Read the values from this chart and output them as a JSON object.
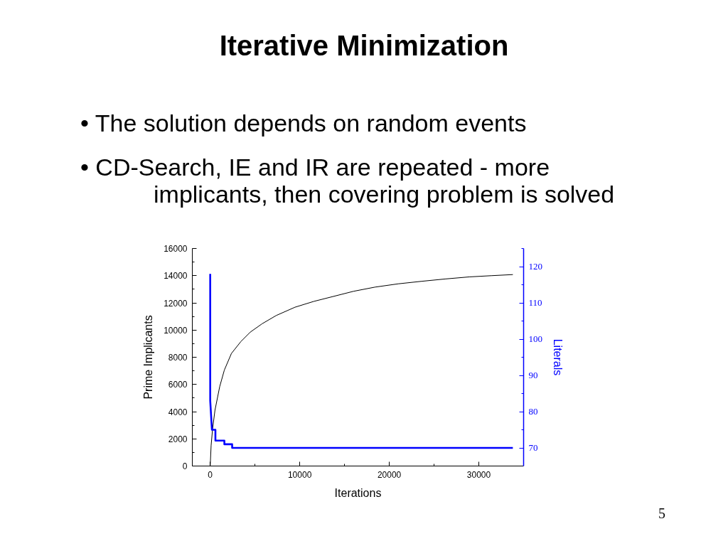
{
  "chart_data": {
    "type": "line",
    "title": "Iterative Minimization",
    "xlabel": "Iterations",
    "ylabel": "Prime Implicants",
    "y2label": "Literals",
    "annotations": [
      "• The solution depends on random events",
      "• CD-Search, IE and IR are repeated - more implicants, then covering problem is solved",
      "5"
    ],
    "xlim": [
      -2000,
      35000
    ],
    "xticks": [
      0,
      {
        "value": 5000,
        "label": null
      },
      10000,
      {
        "value": 15000,
        "label": null
      },
      20000,
      {
        "value": 25000,
        "label": null
      },
      30000
    ],
    "ylim": [
      0,
      16000
    ],
    "yticks": [
      0,
      {
        "value": 1000,
        "label": null
      },
      2000,
      {
        "value": 3000,
        "label": null
      },
      4000,
      {
        "value": 5000,
        "label": null
      },
      6000,
      {
        "value": 7000,
        "label": null
      },
      8000,
      {
        "value": 9000,
        "label": null
      },
      10000,
      {
        "value": 11000,
        "label": null
      },
      12000,
      {
        "value": 13000,
        "label": null
      },
      14000,
      {
        "value": 15000,
        "label": null
      },
      16000
    ],
    "y2lim": [
      65,
      125
    ],
    "y2ticks": [
      70,
      {
        "value": 75,
        "label": null
      },
      80,
      {
        "value": 85,
        "label": null
      },
      90,
      {
        "value": 95,
        "label": null
      },
      100,
      {
        "value": 105,
        "label": null
      },
      110,
      {
        "value": 115,
        "label": null
      },
      120,
      {
        "value": 125,
        "label": null
      }
    ],
    "series": [
      {
        "color": "#000000",
        "x": [
          0,
          100,
          260,
          530,
          1060,
          1580,
          2370,
          3420,
          4480,
          5790,
          7370,
          9470,
          11580,
          13680,
          16000,
          18420,
          21000,
          23680,
          26300,
          28940,
          31400,
          33800
        ],
        "values": [
          0,
          1500,
          2700,
          4100,
          5840,
          7060,
          8280,
          9150,
          9850,
          10460,
          11070,
          11680,
          12110,
          12460,
          12850,
          13160,
          13400,
          13590,
          13760,
          13910,
          14000,
          14080
        ]
      },
      {
        "color": "#0000ff",
        "axis": "y2",
        "x": [
          0,
          0,
          190,
          580,
          580,
          1580,
          1580,
          2450,
          2450,
          33800
        ],
        "values": [
          118,
          83,
          75,
          75,
          72,
          72,
          71,
          71,
          70,
          70
        ]
      }
    ]
  }
}
